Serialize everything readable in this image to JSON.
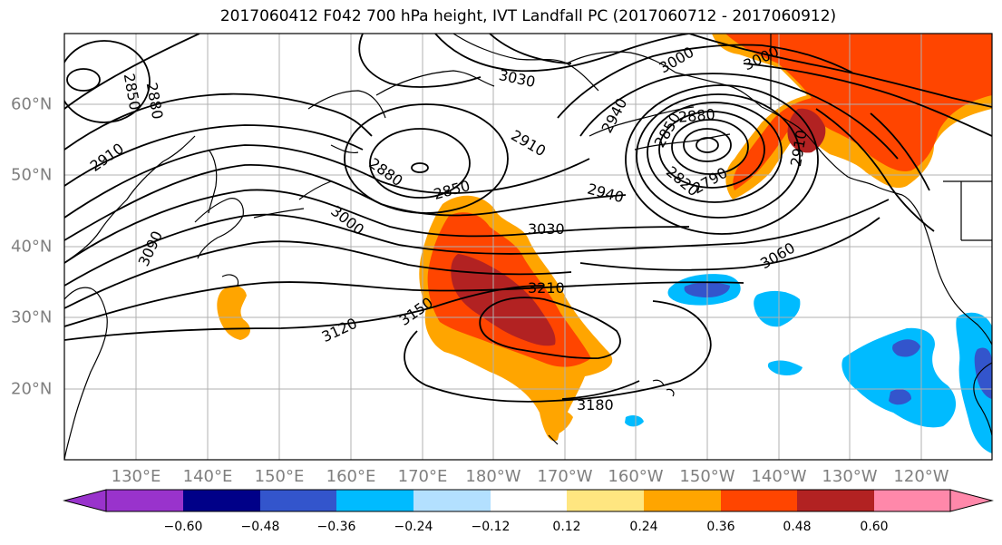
{
  "title": "2017060412 F042 700 hPa height, IVT Landfall PC (2017060712 - 2017060912)",
  "lon_labels": [
    "130°E",
    "140°E",
    "150°E",
    "160°E",
    "170°E",
    "180°W",
    "170°W",
    "160°W",
    "150°W",
    "140°W",
    "130°W",
    "120°W"
  ],
  "lat_labels": [
    "60°N",
    "50°N",
    "40°N",
    "30°N",
    "20°N"
  ],
  "contour_labels": [
    "2850",
    "2880",
    "3030",
    "3000",
    "3000",
    "2940",
    "2910",
    "2880",
    "2850",
    "2820",
    "2790",
    "2910",
    "3000",
    "3090",
    "2910",
    "2880",
    "2850",
    "2940",
    "3030",
    "3060",
    "3210",
    "3150",
    "3120",
    "3180"
  ],
  "colorbar": {
    "ticks": [
      "−0.60",
      "−0.48",
      "−0.36",
      "−0.24",
      "−0.12",
      "0.12",
      "0.24",
      "0.36",
      "0.48",
      "0.60"
    ],
    "colors": [
      "#9933cc",
      "#000088",
      "#3355cc",
      "#00bbff",
      "#b3e0ff",
      "#ffffff",
      "#ffe680",
      "#ffa500",
      "#ff4500",
      "#b22222",
      "#ff88aa"
    ]
  },
  "fill_colors": {
    "orange_light": "#ffa500",
    "orange": "#ff4500",
    "dark_red": "#b22222",
    "cyan": "#00bbff",
    "blue": "#3355cc"
  }
}
